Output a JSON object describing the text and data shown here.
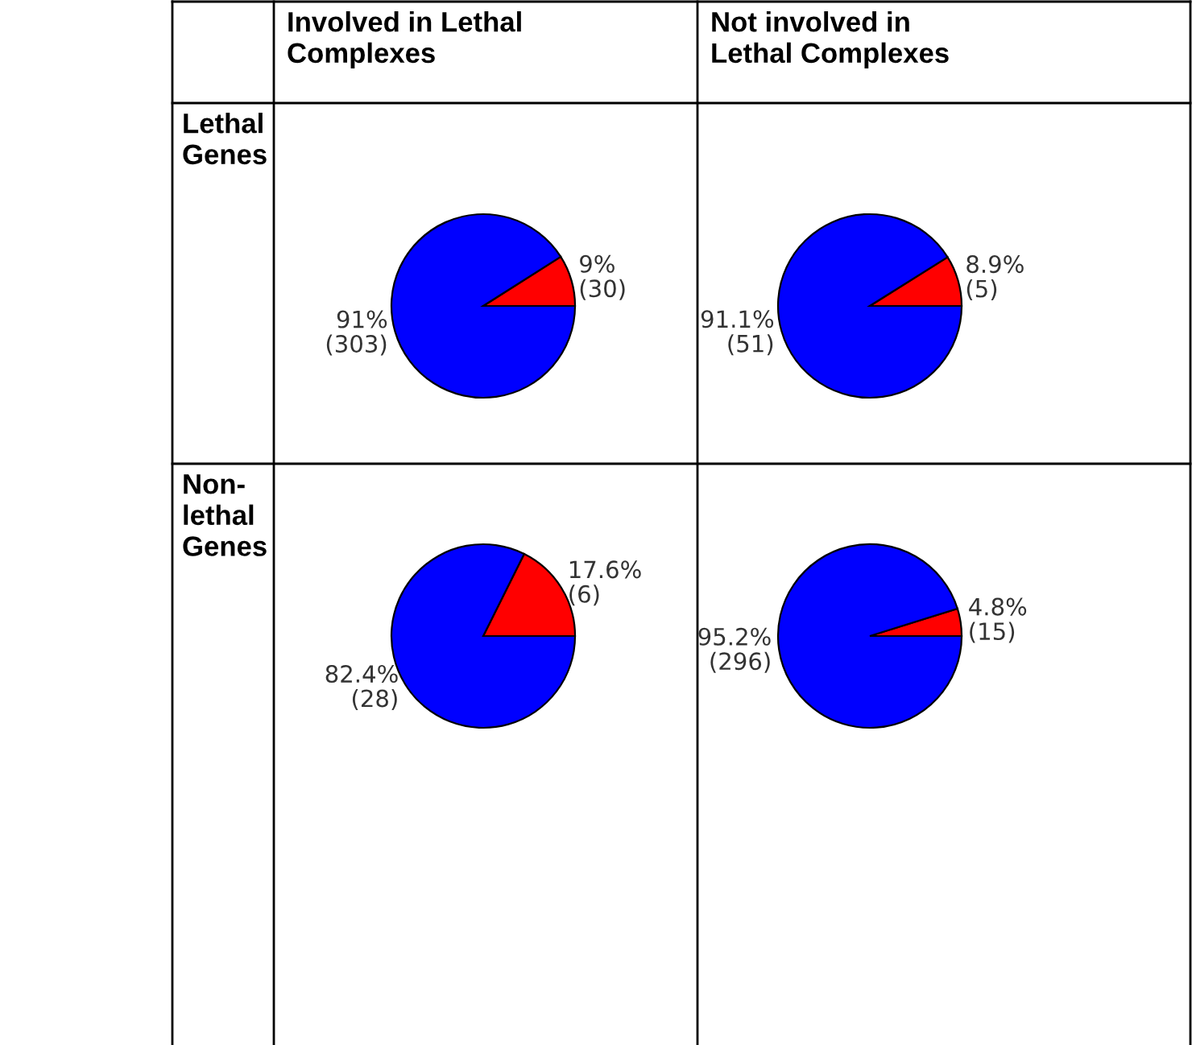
{
  "chart_data": [
    {
      "type": "other",
      "annotations": [
        "Involved in Lethal\nComplexes",
        "Not involved in\nLethal Complexes",
        "Lethal\nGenes",
        "Non-\nlethal\nGenes"
      ]
    },
    {
      "type": "pie",
      "categories": [
        null,
        null
      ],
      "values": [
        30,
        303
      ],
      "colors": [
        "#ff0000",
        "#0000ff"
      ],
      "value_labels": [
        "9%\n(30)",
        "91%\n(303)"
      ]
    },
    {
      "type": "pie",
      "categories": [
        null,
        null
      ],
      "values": [
        5,
        51
      ],
      "colors": [
        "#ff0000",
        "#0000ff"
      ],
      "value_labels": [
        "8.9%\n(5)",
        "91.1%\n(51)"
      ]
    },
    {
      "type": "pie",
      "categories": [
        null,
        null
      ],
      "values": [
        6,
        28
      ],
      "colors": [
        "#ff0000",
        "#0000ff"
      ],
      "value_labels": [
        "17.6%\n(6)",
        "82.4%\n(28)"
      ]
    },
    {
      "type": "pie",
      "categories": [
        null,
        null
      ],
      "values": [
        15,
        296
      ],
      "colors": [
        "#ff0000",
        "#0000ff"
      ],
      "value_labels": [
        "4.8%\n(15)",
        "95.2%\n(296)"
      ]
    }
  ]
}
